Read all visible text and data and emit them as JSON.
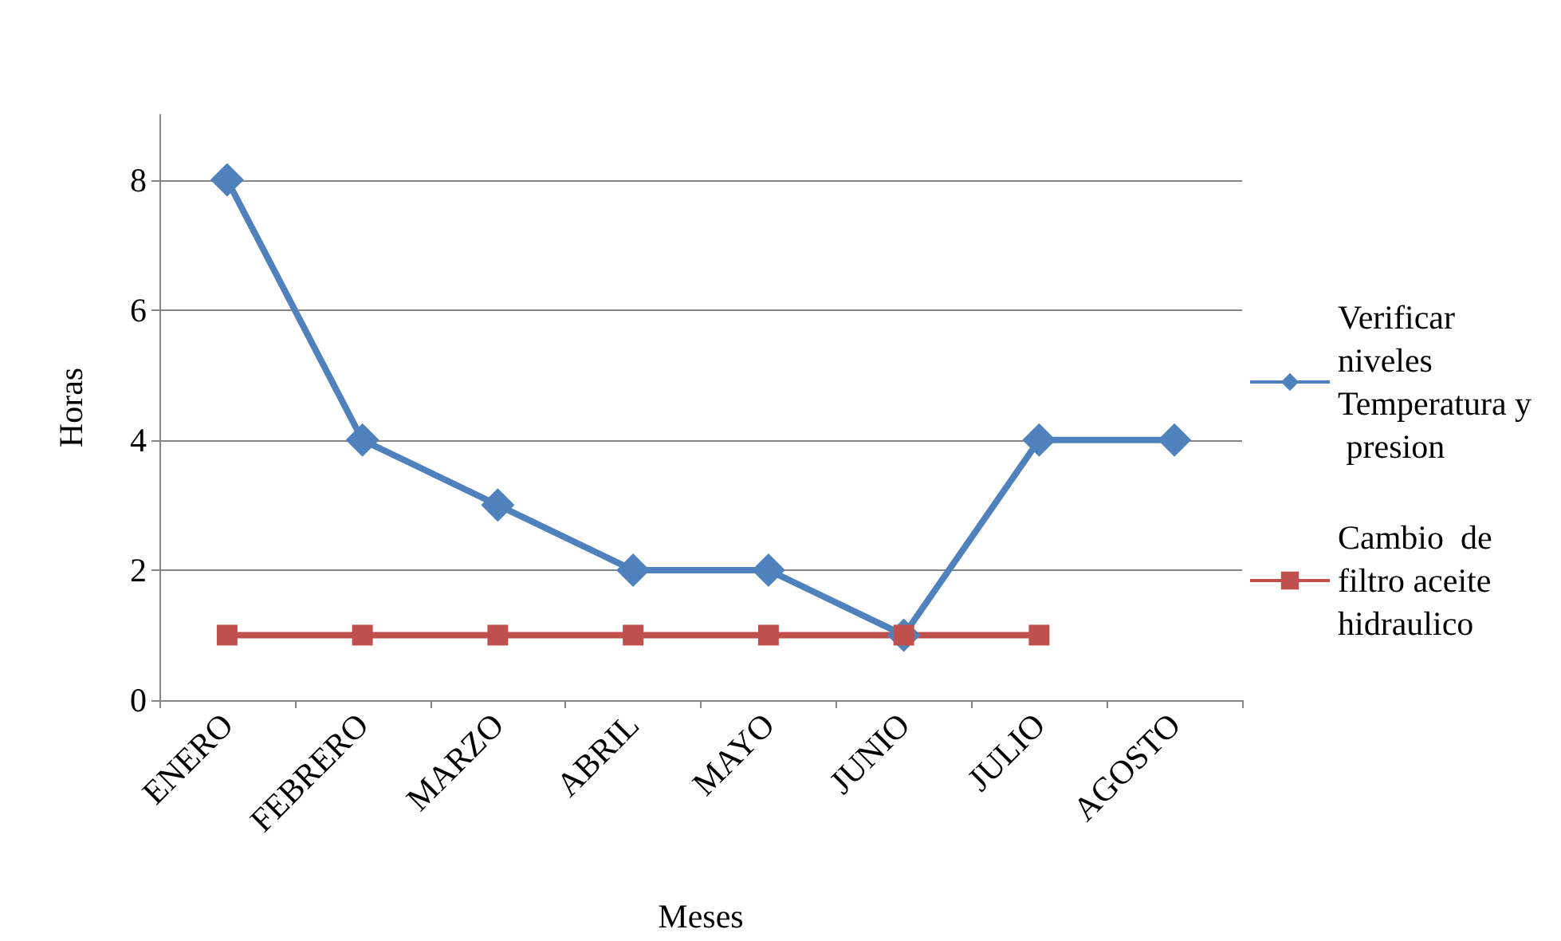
{
  "chart_data": {
    "type": "line",
    "xlabel": "Meses",
    "ylabel": "Horas",
    "categories": [
      "ENERO",
      "FEBRERO",
      "MARZO",
      "ABRIL",
      "MAYO",
      "JUNIO",
      "JULIO",
      "AGOSTO"
    ],
    "series": [
      {
        "name": "Verificar niveles Temperatura y presion",
        "color": "#4f81bd",
        "marker": "diamond",
        "values": [
          8,
          4,
          3,
          2,
          2,
          1,
          4,
          4
        ]
      },
      {
        "name": "Cambio  de filtro aceite hidraulico",
        "color": "#c0504d",
        "marker": "square",
        "values": [
          1,
          1,
          1,
          1,
          1,
          1,
          1,
          null
        ]
      }
    ],
    "ylim": [
      0,
      9
    ],
    "yticks": [
      0,
      2,
      4,
      6,
      8
    ],
    "grid": "y",
    "legend": "right",
    "line_style": "solid"
  }
}
